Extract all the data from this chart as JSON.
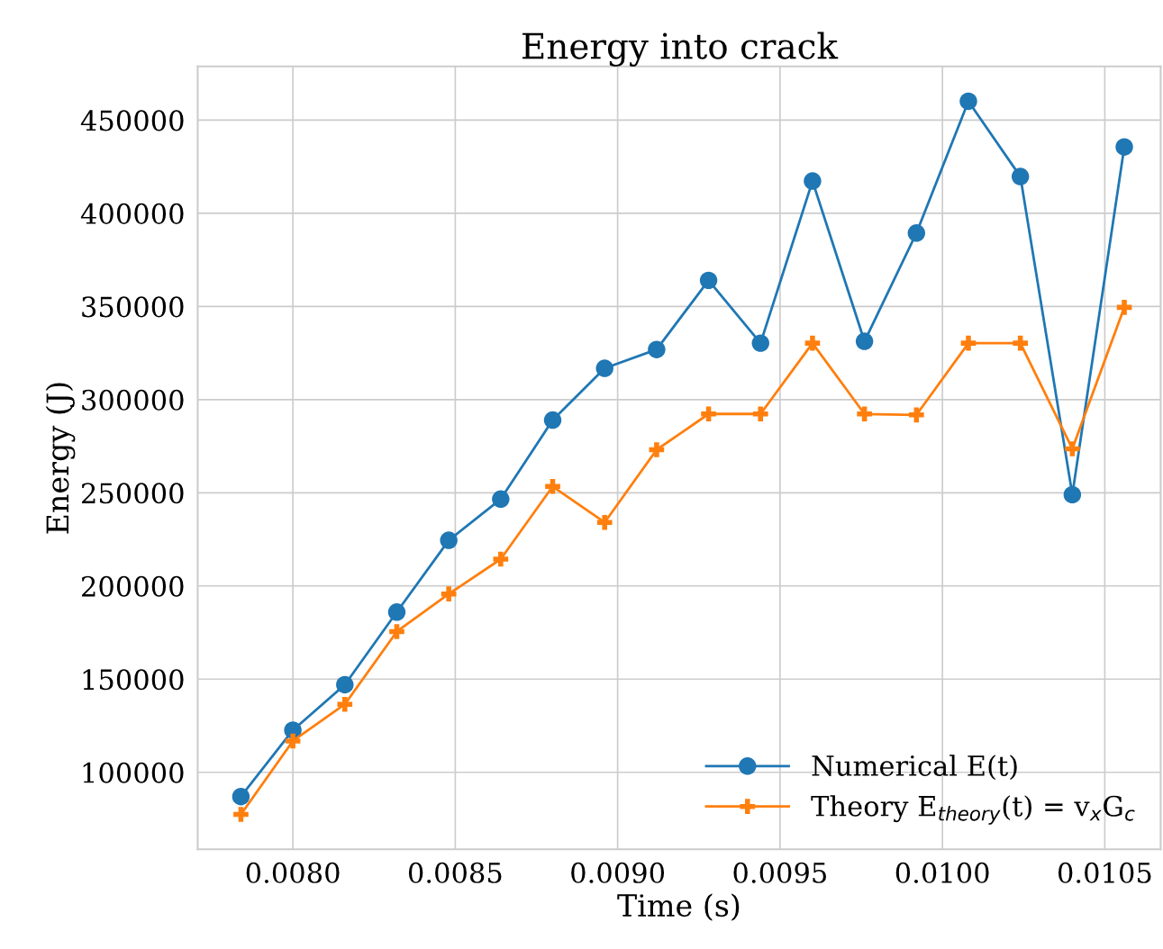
{
  "chart_data": {
    "type": "line",
    "title": "Energy into crack",
    "xlabel": "Time (s)",
    "ylabel": "Energy (J)",
    "x": [
      0.00784,
      0.008,
      0.00816,
      0.00832,
      0.00848,
      0.00864,
      0.0088,
      0.00896,
      0.00912,
      0.00928,
      0.00944,
      0.0096,
      0.00976,
      0.00992,
      0.01008,
      0.01024,
      0.0104,
      0.01056
    ],
    "series": [
      {
        "name": "Numerical E(t)",
        "color": "#1f77b4",
        "marker": "circle",
        "values": [
          87000,
          122600,
          147000,
          186000,
          224500,
          246600,
          289000,
          316800,
          326900,
          364000,
          330300,
          417300,
          331300,
          389400,
          460100,
          419700,
          249000,
          435600
        ]
      },
      {
        "name": "Theory E$_{theory}$(t) = v$_{x}$G$_{c}$",
        "color": "#ff7f0e",
        "marker": "cross",
        "values": [
          77400,
          116800,
          136500,
          175500,
          195700,
          214400,
          253400,
          234100,
          273100,
          292300,
          292300,
          330300,
          292300,
          291800,
          330300,
          330300,
          273600,
          349500
        ]
      }
    ],
    "xlim": [
      0.007707,
      0.010672
    ],
    "ylim": [
      58650,
      478800
    ],
    "xticks": [
      {
        "value": 0.008,
        "label": "0.0080"
      },
      {
        "value": 0.0085,
        "label": "0.0085"
      },
      {
        "value": 0.009,
        "label": "0.0090"
      },
      {
        "value": 0.0095,
        "label": "0.0095"
      },
      {
        "value": 0.01,
        "label": "0.0100"
      },
      {
        "value": 0.0105,
        "label": "0.0105"
      }
    ],
    "yticks": [
      100000,
      150000,
      200000,
      250000,
      300000,
      350000,
      400000,
      450000
    ],
    "grid": true,
    "legend": "lower right",
    "line_style": "solid"
  }
}
